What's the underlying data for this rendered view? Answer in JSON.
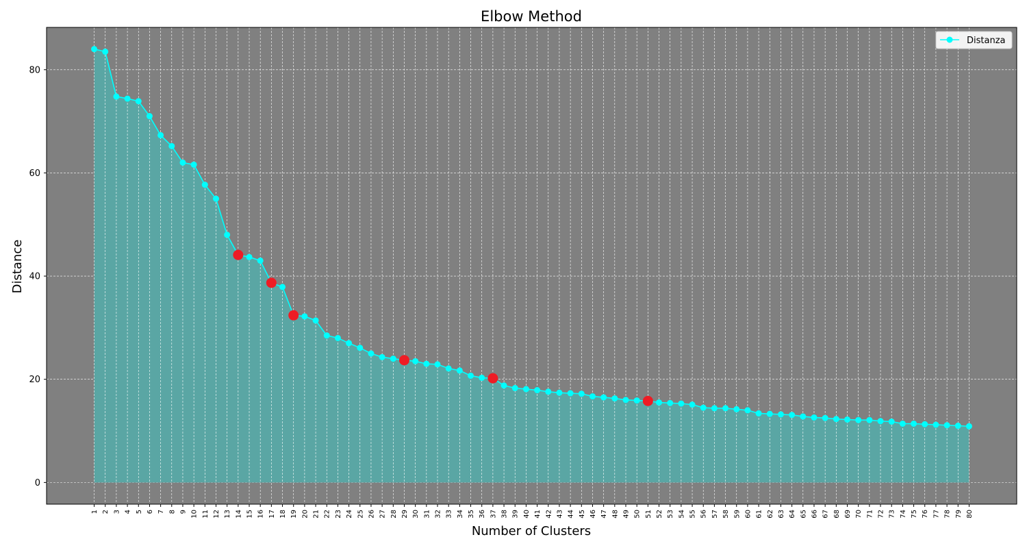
{
  "chart_data": {
    "type": "line",
    "title": "Elbow Method",
    "xlabel": "Number of Clusters",
    "ylabel": "Distance",
    "x": [
      1,
      2,
      3,
      4,
      5,
      6,
      7,
      8,
      9,
      10,
      11,
      12,
      13,
      14,
      15,
      16,
      17,
      18,
      19,
      20,
      21,
      22,
      23,
      24,
      25,
      26,
      27,
      28,
      29,
      30,
      31,
      32,
      33,
      34,
      35,
      36,
      37,
      38,
      39,
      40,
      41,
      42,
      43,
      44,
      45,
      46,
      47,
      48,
      49,
      50,
      51,
      52,
      53,
      54,
      55,
      56,
      57,
      58,
      59,
      60,
      61,
      62,
      63,
      64,
      65,
      66,
      67,
      68,
      69,
      70,
      71,
      72,
      73,
      74,
      75,
      76,
      77,
      78,
      79,
      80
    ],
    "series": [
      {
        "name": "Distanza",
        "color": "#00ffff",
        "fill": "#5aa6a4",
        "values": [
          84.0,
          83.5,
          74.8,
          74.4,
          73.9,
          71.0,
          67.3,
          65.2,
          62.0,
          61.6,
          57.7,
          55.0,
          48.0,
          44.1,
          43.7,
          43.0,
          38.7,
          37.9,
          32.4,
          32.2,
          31.4,
          28.5,
          28.0,
          27.0,
          26.1,
          25.0,
          24.3,
          24.0,
          23.7,
          23.5,
          23.0,
          22.9,
          22.1,
          21.7,
          20.7,
          20.3,
          20.2,
          18.8,
          18.3,
          18.1,
          17.9,
          17.6,
          17.4,
          17.3,
          17.2,
          16.7,
          16.5,
          16.3,
          16.0,
          15.9,
          15.8,
          15.5,
          15.4,
          15.3,
          15.1,
          14.5,
          14.4,
          14.4,
          14.2,
          14.0,
          13.4,
          13.3,
          13.2,
          13.1,
          12.8,
          12.6,
          12.5,
          12.3,
          12.2,
          12.1,
          12.1,
          11.9,
          11.8,
          11.4,
          11.4,
          11.3,
          11.2,
          11.1,
          11.0,
          10.9
        ]
      }
    ],
    "highlight_x": [
      14,
      17,
      19,
      29,
      37,
      51
    ],
    "highlight_color": "#ee1c25",
    "background": "#808080",
    "yticks": [
      0,
      20,
      40,
      60,
      80
    ],
    "xlim": [
      -3.3,
      84.3
    ],
    "ylim": [
      -4.2,
      88.2
    ],
    "grid": true,
    "legend_position": "top-right"
  }
}
